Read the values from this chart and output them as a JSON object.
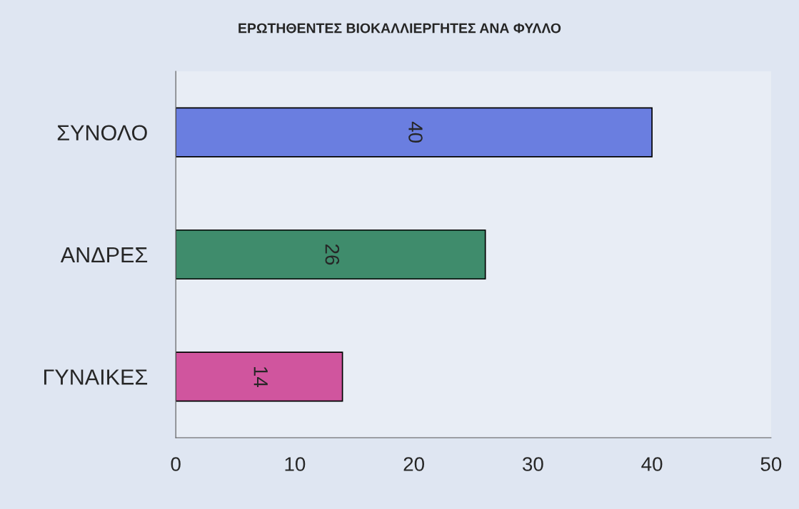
{
  "chart_data": {
    "type": "bar",
    "orientation": "horizontal",
    "title": "ΕΡΩΤΗΘΕΝΤΕΣ ΒΙΟΚΑΛΛΙΕΡΓΗΤΕΣ ΑΝΑ ΦΥΛΛΟ",
    "categories": [
      "ΣΥΝΟΛΟ",
      "ΑΝΔΡΕΣ",
      "ΓΥΝΑΙΚΕΣ"
    ],
    "values": [
      40,
      26,
      14
    ],
    "colors": [
      "#6a7ee0",
      "#3f8c6c",
      "#d0559e"
    ],
    "xlim": [
      0,
      50
    ],
    "xticks": [
      0,
      10,
      20,
      30,
      40,
      50
    ],
    "data_labels": true,
    "grid": false,
    "legend": false
  }
}
